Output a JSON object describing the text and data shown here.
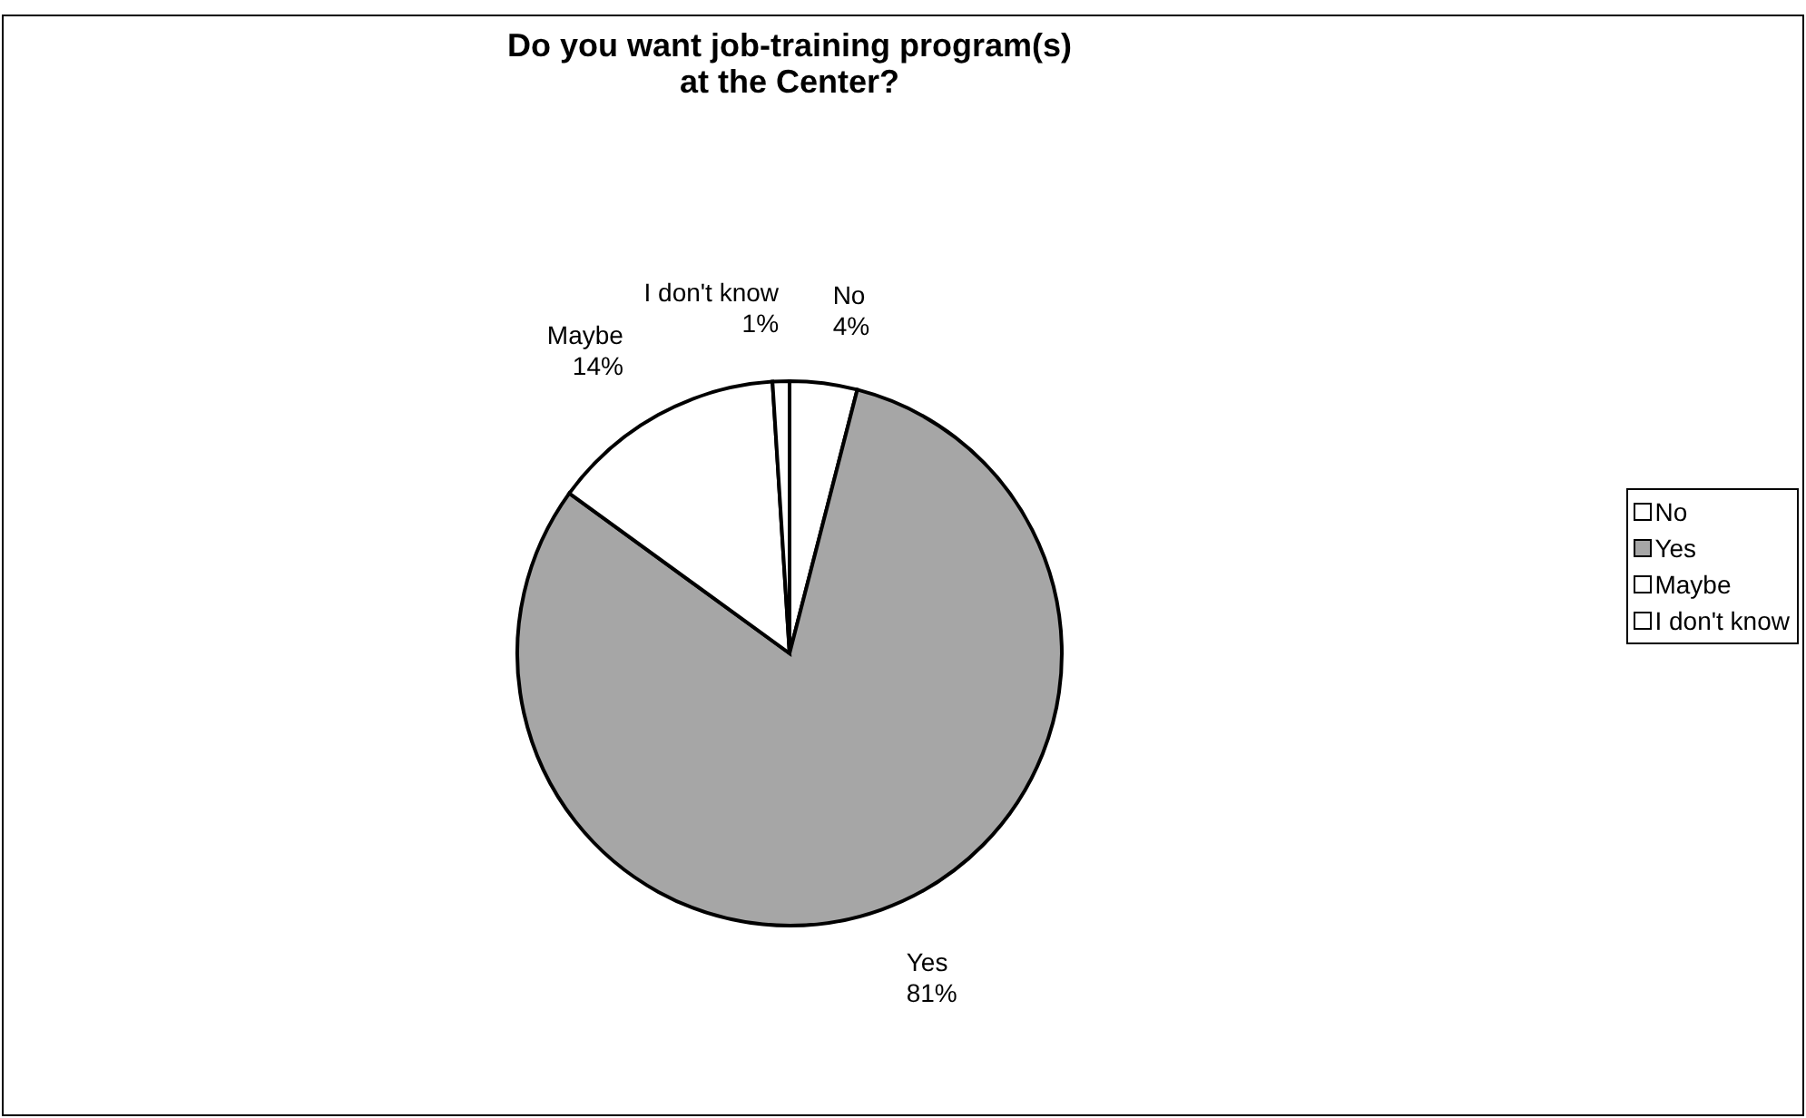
{
  "chart_data": {
    "type": "pie",
    "title": "Do you want job-training program(s) at the Center?",
    "categories": [
      "No",
      "Yes",
      "Maybe",
      "I don't know"
    ],
    "values": [
      4,
      81,
      14,
      1
    ],
    "value_labels": [
      "4%",
      "81%",
      "14%",
      "1%"
    ],
    "colors": [
      "#ffffff",
      "#a6a6a6",
      "#ffffff",
      "#ffffff"
    ],
    "legend": "right"
  }
}
